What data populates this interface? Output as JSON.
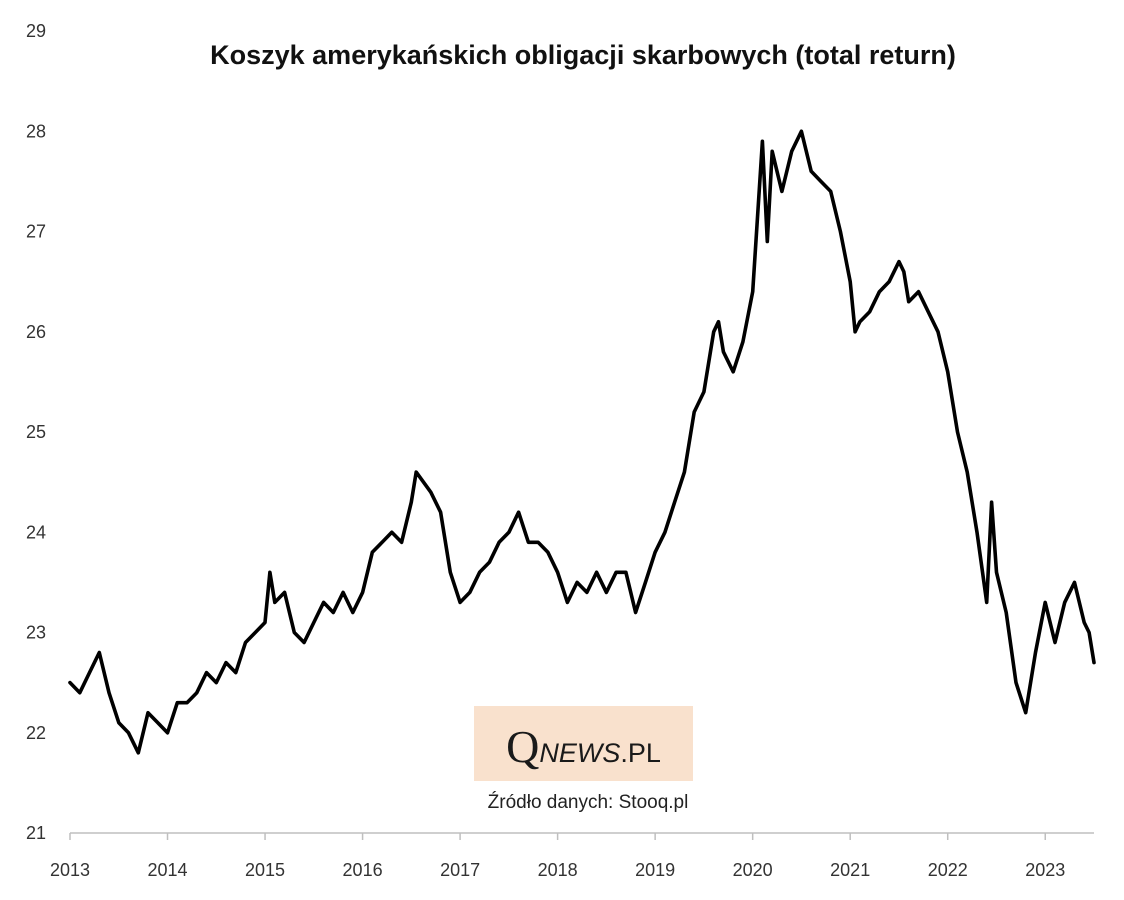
{
  "chart_data": {
    "type": "line",
    "title": "Koszyk amerykańskich obligacji skarbowych (total return)",
    "xlabel": "",
    "ylabel": "",
    "xlim": [
      2013.0,
      2023.5
    ],
    "ylim": [
      21,
      29
    ],
    "x_ticks": [
      2013,
      2014,
      2015,
      2016,
      2017,
      2018,
      2019,
      2020,
      2021,
      2022,
      2023
    ],
    "y_ticks": [
      21,
      22,
      23,
      24,
      25,
      26,
      27,
      28,
      29
    ],
    "grid": false,
    "legend": "none",
    "line_color": "#000000",
    "x": [
      2013.0,
      2013.1,
      2013.2,
      2013.3,
      2013.4,
      2013.5,
      2013.6,
      2013.7,
      2013.8,
      2013.9,
      2014.0,
      2014.1,
      2014.2,
      2014.3,
      2014.4,
      2014.5,
      2014.6,
      2014.7,
      2014.8,
      2014.9,
      2015.0,
      2015.05,
      2015.1,
      2015.2,
      2015.3,
      2015.4,
      2015.5,
      2015.6,
      2015.7,
      2015.8,
      2015.9,
      2016.0,
      2016.1,
      2016.2,
      2016.3,
      2016.4,
      2016.5,
      2016.55,
      2016.7,
      2016.8,
      2016.9,
      2017.0,
      2017.1,
      2017.2,
      2017.3,
      2017.4,
      2017.5,
      2017.6,
      2017.7,
      2017.8,
      2017.9,
      2018.0,
      2018.1,
      2018.2,
      2018.3,
      2018.4,
      2018.5,
      2018.6,
      2018.7,
      2018.8,
      2018.9,
      2019.0,
      2019.1,
      2019.2,
      2019.3,
      2019.4,
      2019.5,
      2019.6,
      2019.65,
      2019.7,
      2019.8,
      2019.9,
      2020.0,
      2020.1,
      2020.15,
      2020.2,
      2020.25,
      2020.3,
      2020.4,
      2020.5,
      2020.6,
      2020.7,
      2020.8,
      2020.9,
      2021.0,
      2021.05,
      2021.1,
      2021.2,
      2021.3,
      2021.4,
      2021.5,
      2021.55,
      2021.6,
      2021.7,
      2021.8,
      2021.9,
      2022.0,
      2022.1,
      2022.2,
      2022.3,
      2022.4,
      2022.45,
      2022.5,
      2022.6,
      2022.7,
      2022.8,
      2022.9,
      2023.0,
      2023.1,
      2023.2,
      2023.3,
      2023.4,
      2023.45,
      2023.5
    ],
    "values": [
      22.5,
      22.4,
      22.6,
      22.8,
      22.4,
      22.1,
      22.0,
      21.8,
      22.2,
      22.1,
      22.0,
      22.3,
      22.3,
      22.4,
      22.6,
      22.5,
      22.7,
      22.6,
      22.9,
      23.0,
      23.1,
      23.6,
      23.3,
      23.4,
      23.0,
      22.9,
      23.1,
      23.3,
      23.2,
      23.4,
      23.2,
      23.4,
      23.8,
      23.9,
      24.0,
      23.9,
      24.3,
      24.6,
      24.4,
      24.2,
      23.6,
      23.3,
      23.4,
      23.6,
      23.7,
      23.9,
      24.0,
      24.2,
      23.9,
      23.9,
      23.8,
      23.6,
      23.3,
      23.5,
      23.4,
      23.6,
      23.4,
      23.6,
      23.6,
      23.2,
      23.5,
      23.8,
      24.0,
      24.3,
      24.6,
      25.2,
      25.4,
      26.0,
      26.1,
      25.8,
      25.6,
      25.9,
      26.4,
      27.9,
      26.9,
      27.8,
      27.6,
      27.4,
      27.8,
      28.0,
      27.6,
      27.5,
      27.4,
      27.0,
      26.5,
      26.0,
      26.1,
      26.2,
      26.4,
      26.5,
      26.7,
      26.6,
      26.3,
      26.4,
      26.2,
      26.0,
      25.6,
      25.0,
      24.6,
      24.0,
      23.3,
      24.3,
      23.6,
      23.2,
      22.5,
      22.2,
      22.8,
      23.3,
      22.9,
      23.3,
      23.5,
      23.1,
      23.0,
      22.7
    ],
    "source": "Źródło danych: Stooq.pl"
  },
  "logo": {
    "q": "Q",
    "news": "NEWS",
    "pl": ".PL",
    "background": "#f9e1cd"
  }
}
